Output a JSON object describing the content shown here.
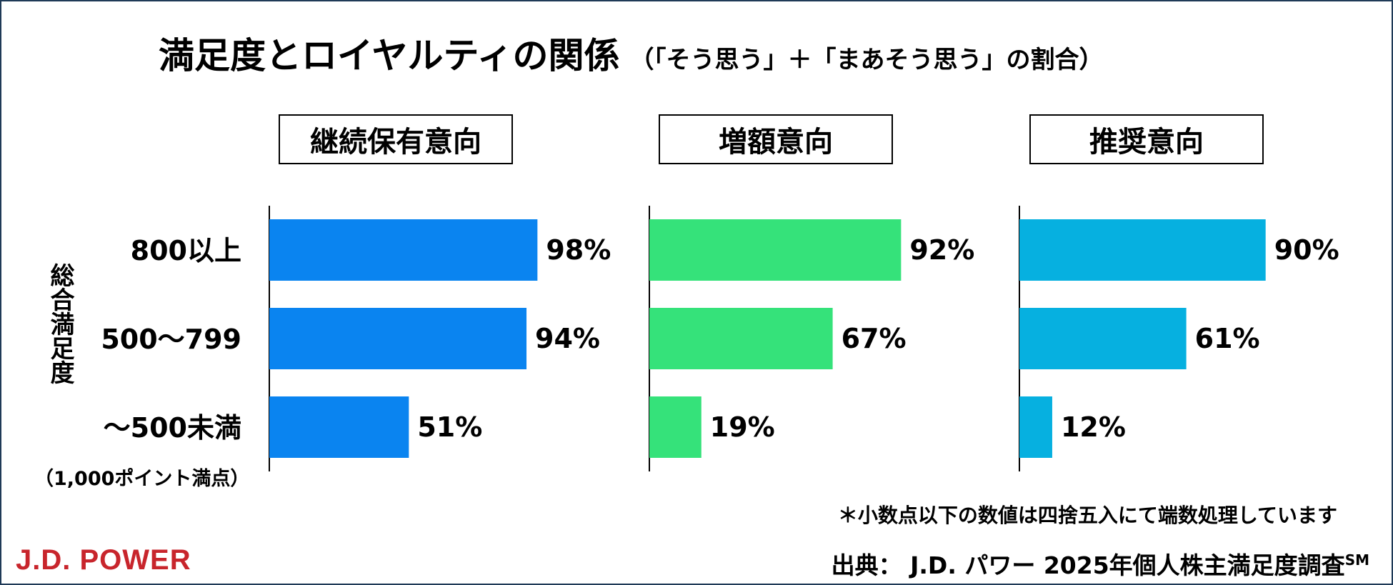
{
  "title": "満足度とロイヤルティの関係",
  "subtitle": "（「そう思う」＋「まあそう思う」の割合）",
  "y_axis_title": "総合満足度",
  "scale_note": "（1,000ポイント満点）",
  "rounding_note": "＊小数点以下の数値は四捨五入にて端数処理しています",
  "source": "出典： J.D. パワー 2025年個人株主満足度調査",
  "source_mark": "SM",
  "logo": "J.D. POWER",
  "colors": {
    "frame": "#1f3a57",
    "logo": "#c8252c"
  },
  "chart_data": {
    "type": "bar",
    "orientation": "horizontal",
    "categories": [
      "800以上",
      "500〜799",
      "〜500未満"
    ],
    "value_suffix": "%",
    "xlim": [
      0,
      100
    ],
    "panels": [
      {
        "name": "継続保有意向",
        "color": "#0a84f0",
        "values": [
          98,
          94,
          51
        ]
      },
      {
        "name": "増額意向",
        "color": "#35e27a",
        "values": [
          92,
          67,
          19
        ]
      },
      {
        "name": "推奨意向",
        "color": "#06b0e0",
        "values": [
          90,
          61,
          12
        ]
      }
    ]
  }
}
